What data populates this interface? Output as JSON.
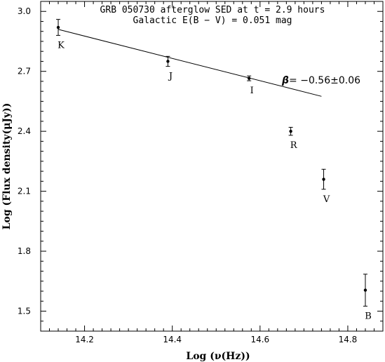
{
  "chart_data": {
    "type": "scatter",
    "title": "GRB 050730 afterglow SED at t = 2.9 hours",
    "subtitle": "Galactic E(B − V) = 0.051 mag",
    "xlabel": "Log (ν(Hz))",
    "ylabel": "Log (Flux density(μJy))",
    "xlim": [
      14.1,
      14.88
    ],
    "ylim": [
      1.4,
      3.05
    ],
    "xticks": [
      14.2,
      14.4,
      14.6,
      14.8
    ],
    "xtick_labels": [
      "14.2",
      "14.4",
      "14.6",
      "14.8"
    ],
    "yticks": [
      1.5,
      1.8,
      2.1,
      2.4,
      2.7,
      3.0
    ],
    "ytick_labels": [
      "1.5",
      "1.8",
      "2.1",
      "2.4",
      "2.7",
      "3.0"
    ],
    "grid": false,
    "points": [
      {
        "label": "K",
        "x": 14.14,
        "y": 2.92,
        "yerr": 0.04
      },
      {
        "label": "J",
        "x": 14.39,
        "y": 2.75,
        "yerr": 0.025
      },
      {
        "label": "I",
        "x": 14.575,
        "y": 2.665,
        "yerr": 0.012
      },
      {
        "label": "R",
        "x": 14.67,
        "y": 2.4,
        "yerr": 0.02
      },
      {
        "label": "V",
        "x": 14.745,
        "y": 2.16,
        "yerr": 0.05
      },
      {
        "label": "B",
        "x": 14.84,
        "y": 1.605,
        "yerr": 0.08
      }
    ],
    "fit_line": {
      "x": [
        14.14,
        14.74
      ],
      "y": [
        2.91,
        2.575
      ]
    },
    "annotation": {
      "symbol": "β",
      "text": "=  −0.56±0.06"
    }
  }
}
